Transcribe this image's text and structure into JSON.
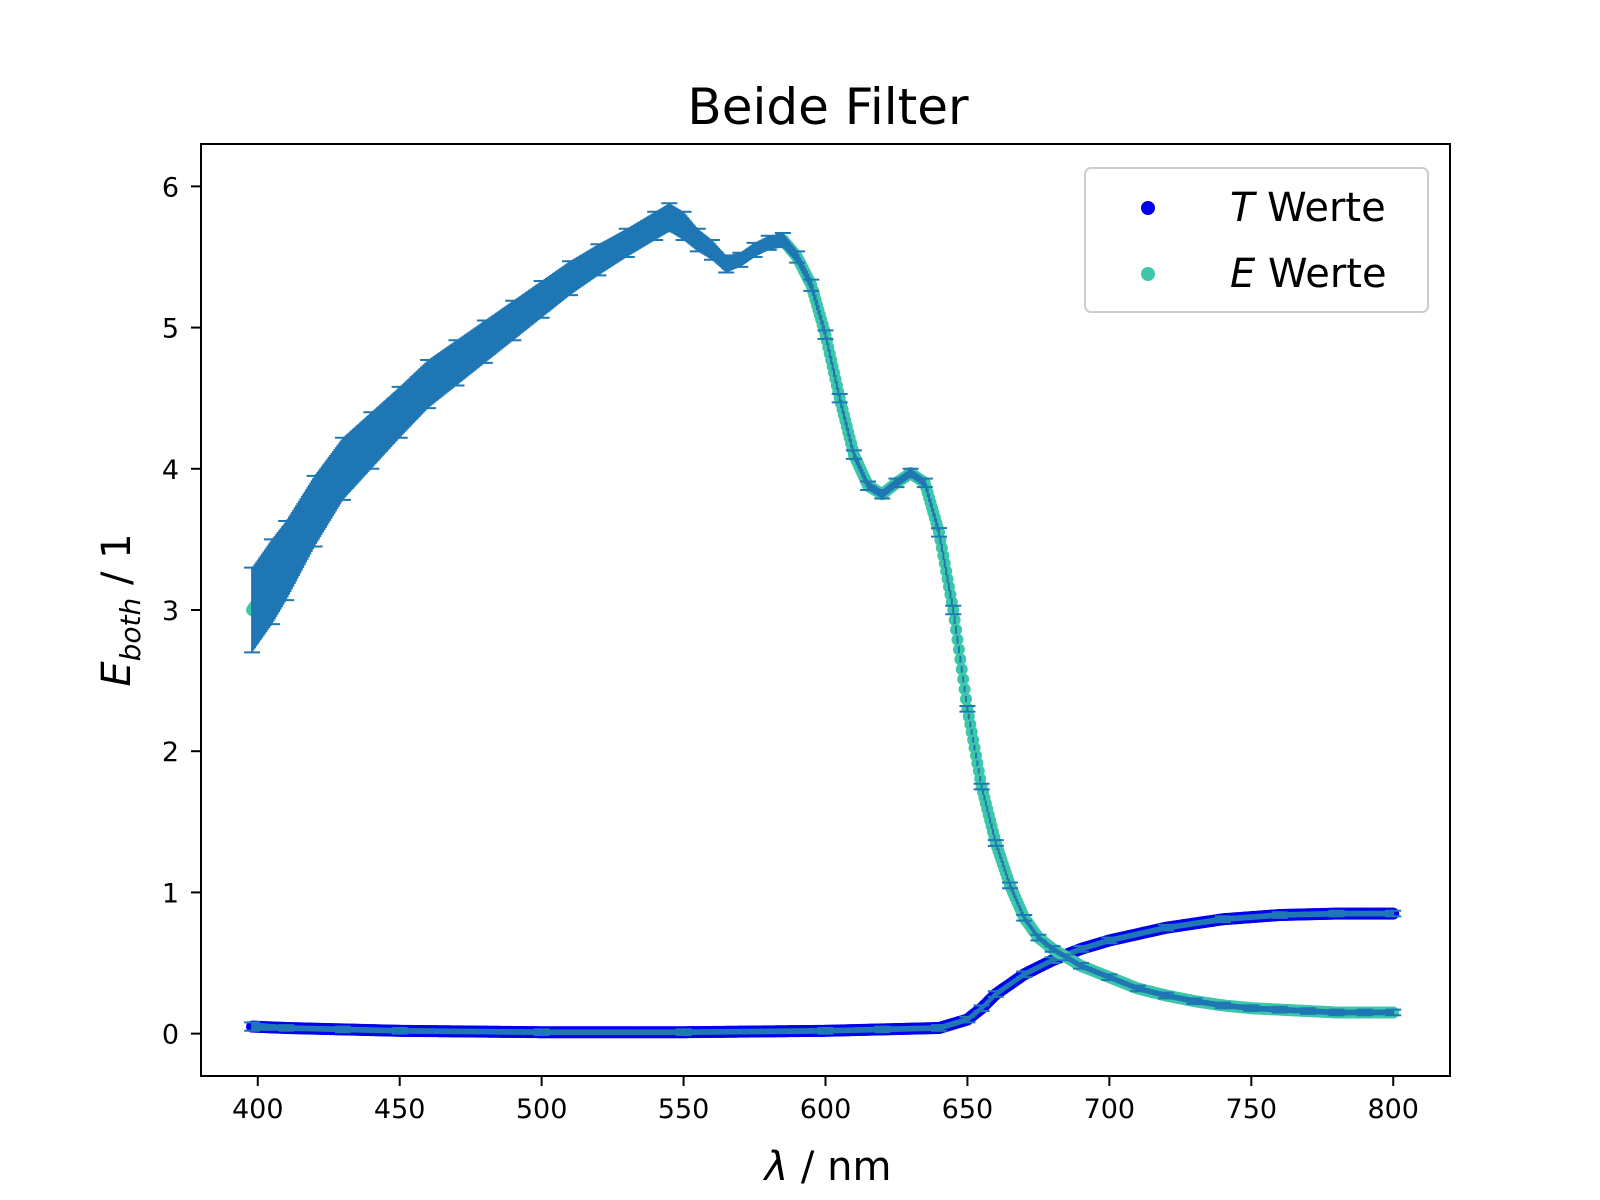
{
  "chart_data": {
    "type": "scatter",
    "title": "Beide Filter",
    "xlabel": {
      "symbol": "λ",
      "unit": " / nm"
    },
    "ylabel": {
      "symbol": "E",
      "subscript": "both",
      "unit": " / 1"
    },
    "xlim": [
      380,
      820
    ],
    "ylim": [
      -0.3,
      6.3
    ],
    "xticks": [
      400,
      450,
      500,
      550,
      600,
      650,
      700,
      750,
      800
    ],
    "yticks": [
      0,
      1,
      2,
      3,
      4,
      5,
      6
    ],
    "grid": false,
    "legend": {
      "position": "top-right",
      "entries": [
        {
          "symbol": "T",
          "text": " Werte",
          "color": "#0000ee"
        },
        {
          "symbol": "E",
          "text": " Werte",
          "color": "#3cc8a8"
        }
      ]
    },
    "errorbar_color": "#1f77b4",
    "series": [
      {
        "name": "T Werte",
        "color": "#0000ee",
        "x": [
          398,
          410,
          430,
          450,
          500,
          550,
          600,
          620,
          640,
          650,
          655,
          660,
          670,
          680,
          690,
          700,
          720,
          740,
          760,
          780,
          800
        ],
        "y": [
          0.05,
          0.04,
          0.03,
          0.02,
          0.01,
          0.01,
          0.02,
          0.03,
          0.04,
          0.1,
          0.18,
          0.28,
          0.42,
          0.52,
          0.6,
          0.66,
          0.75,
          0.81,
          0.84,
          0.85,
          0.85
        ],
        "yerr": [
          0.03,
          0.02,
          0.02,
          0.02,
          0.02,
          0.02,
          0.02,
          0.02,
          0.02,
          0.02,
          0.02,
          0.02,
          0.02,
          0.02,
          0.02,
          0.02,
          0.02,
          0.02,
          0.02,
          0.02,
          0.02
        ]
      },
      {
        "name": "E Werte",
        "color": "#3cc8a8",
        "x": [
          398,
          405,
          410,
          420,
          430,
          440,
          450,
          460,
          470,
          480,
          490,
          500,
          510,
          520,
          530,
          540,
          545,
          550,
          555,
          560,
          565,
          570,
          575,
          580,
          585,
          590,
          595,
          600,
          605,
          610,
          615,
          620,
          625,
          630,
          635,
          640,
          645,
          650,
          655,
          660,
          665,
          670,
          675,
          680,
          685,
          690,
          700,
          710,
          720,
          730,
          740,
          750,
          760,
          770,
          780,
          790,
          800
        ],
        "y": [
          3.0,
          3.2,
          3.35,
          3.7,
          4.0,
          4.2,
          4.4,
          4.6,
          4.75,
          4.9,
          5.05,
          5.2,
          5.35,
          5.48,
          5.6,
          5.72,
          5.78,
          5.72,
          5.62,
          5.55,
          5.45,
          5.48,
          5.55,
          5.6,
          5.62,
          5.5,
          5.3,
          4.95,
          4.5,
          4.1,
          3.88,
          3.82,
          3.9,
          3.97,
          3.9,
          3.55,
          3.0,
          2.3,
          1.75,
          1.35,
          1.05,
          0.82,
          0.68,
          0.6,
          0.54,
          0.48,
          0.4,
          0.32,
          0.27,
          0.23,
          0.2,
          0.18,
          0.17,
          0.16,
          0.15,
          0.15,
          0.15
        ],
        "yerr": [
          0.3,
          0.3,
          0.28,
          0.25,
          0.22,
          0.2,
          0.18,
          0.17,
          0.16,
          0.15,
          0.14,
          0.13,
          0.12,
          0.11,
          0.1,
          0.1,
          0.1,
          0.1,
          0.08,
          0.07,
          0.06,
          0.05,
          0.05,
          0.05,
          0.05,
          0.04,
          0.04,
          0.03,
          0.03,
          0.03,
          0.03,
          0.03,
          0.03,
          0.03,
          0.03,
          0.03,
          0.03,
          0.02,
          0.02,
          0.02,
          0.02,
          0.02,
          0.02,
          0.02,
          0.02,
          0.02,
          0.02,
          0.02,
          0.02,
          0.02,
          0.02,
          0.02,
          0.02,
          0.02,
          0.02,
          0.02,
          0.02
        ]
      }
    ]
  }
}
